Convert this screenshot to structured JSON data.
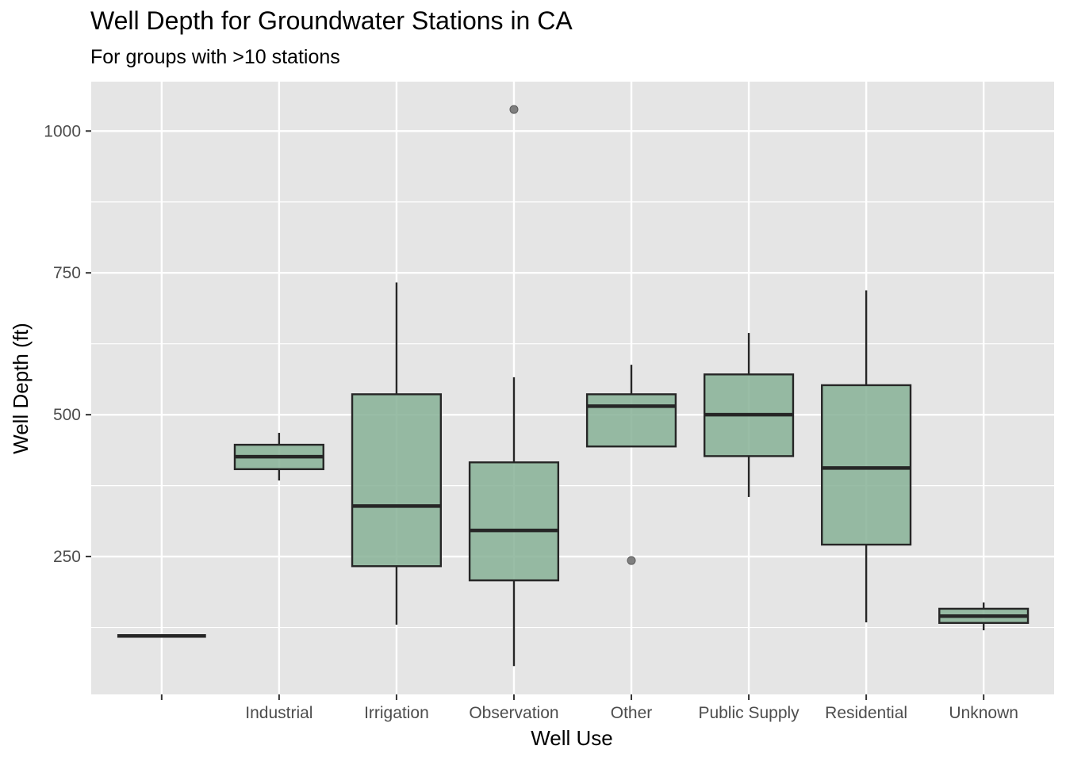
{
  "chart_data": {
    "type": "boxplot",
    "title": "Well Depth for Groundwater Stations in CA",
    "subtitle": "For groups with >10 stations",
    "xlabel": "Well Use",
    "ylabel": "Well Depth (ft)",
    "ylim": [
      7,
      1087
    ],
    "yticks": [
      250,
      500,
      750,
      1000
    ],
    "ytick_labels": [
      "250",
      "500",
      "750",
      "1000"
    ],
    "grid": true,
    "colors": {
      "fill": "#87b197",
      "stroke": "#262626",
      "panel": "#e5e5e5",
      "grid": "#ffffff",
      "outlier": "#7f7f7f"
    },
    "categories": [
      "",
      "Industrial",
      "Irrigation",
      "Observation",
      "Other",
      "Public Supply",
      "Residential",
      "Unknown"
    ],
    "boxes": [
      {
        "category": "",
        "lower_whisker": 110,
        "q1": 110,
        "median": 110,
        "q3": 110,
        "upper_whisker": 110,
        "outliers": []
      },
      {
        "category": "Industrial",
        "lower_whisker": 384,
        "q1": 404,
        "median": 426,
        "q3": 447,
        "upper_whisker": 468,
        "outliers": []
      },
      {
        "category": "Irrigation",
        "lower_whisker": 130,
        "q1": 233,
        "median": 339,
        "q3": 536,
        "upper_whisker": 733,
        "outliers": []
      },
      {
        "category": "Observation",
        "lower_whisker": 57,
        "q1": 208,
        "median": 296,
        "q3": 416,
        "upper_whisker": 566,
        "outliers": [
          1038
        ]
      },
      {
        "category": "Other",
        "lower_whisker": 444,
        "q1": 444,
        "median": 515,
        "q3": 536,
        "upper_whisker": 588,
        "outliers": [
          243
        ]
      },
      {
        "category": "Public Supply",
        "lower_whisker": 355,
        "q1": 427,
        "median": 500,
        "q3": 571,
        "upper_whisker": 644,
        "outliers": []
      },
      {
        "category": "Residential",
        "lower_whisker": 134,
        "q1": 271,
        "median": 406,
        "q3": 552,
        "upper_whisker": 719,
        "outliers": []
      },
      {
        "category": "Unknown",
        "lower_whisker": 120,
        "q1": 133,
        "median": 145,
        "q3": 158,
        "upper_whisker": 169,
        "outliers": []
      }
    ]
  }
}
